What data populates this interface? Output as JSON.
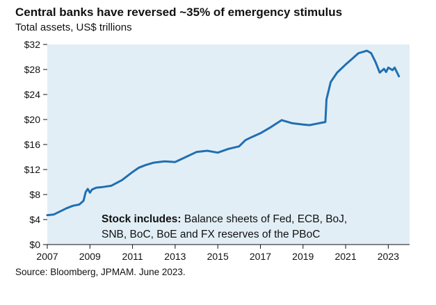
{
  "title": "Central banks have reversed ~35% of emergency stimulus",
  "subtitle": "Total assets, US$ trillions",
  "source": "Source: Bloomberg, JPMAM. June 2023.",
  "colors": {
    "plot_background": "#e2eef6",
    "line": "#1f6fb2",
    "axis": "#111111",
    "gridline": "#c7d8e4"
  },
  "chart_data": {
    "type": "line",
    "title": "Central banks have reversed ~35% of emergency stimulus",
    "subtitle": "Total assets, US$ trillions",
    "xlabel": "",
    "ylabel": "",
    "xlim": [
      2007,
      2024
    ],
    "ylim": [
      0,
      32
    ],
    "grid": false,
    "x_ticks": [
      2007,
      2009,
      2011,
      2013,
      2015,
      2017,
      2019,
      2021,
      2023
    ],
    "x_tick_labels": [
      "2007",
      "2009",
      "2011",
      "2013",
      "2015",
      "2017",
      "2019",
      "2021",
      "2023"
    ],
    "y_ticks": [
      0,
      4,
      8,
      12,
      16,
      20,
      24,
      28,
      32
    ],
    "y_tick_labels": [
      "$0",
      "$4",
      "$8",
      "$12",
      "$16",
      "$20",
      "$24",
      "$28",
      "$32"
    ],
    "annotation": {
      "bold": "Stock includes:",
      "line1": " Balance sheets of Fed, ECB, BoJ,",
      "line2": "SNB, BoC, BoE and FX reserves of the PBoC"
    },
    "series": [
      {
        "x": [
          2007.0,
          2007.3,
          2007.6,
          2007.9,
          2008.2,
          2008.5,
          2008.7,
          2008.8,
          2008.9,
          2009.0,
          2009.1,
          2009.3,
          2009.6,
          2010.0,
          2010.5,
          2011.0,
          2011.3,
          2011.6,
          2012.0,
          2012.5,
          2013.0,
          2013.5,
          2014.0,
          2014.5,
          2015.0,
          2015.5,
          2016.0,
          2016.3,
          2016.6,
          2017.0,
          2017.5,
          2018.0,
          2018.5,
          2019.0,
          2019.3,
          2019.6,
          2019.9,
          2020.05,
          2020.1,
          2020.3,
          2020.6,
          2021.0,
          2021.3,
          2021.6,
          2021.9,
          2022.0,
          2022.2,
          2022.4,
          2022.6,
          2022.8,
          2022.9,
          2023.0,
          2023.2,
          2023.3,
          2023.5
        ],
        "values": [
          4.7,
          4.8,
          5.3,
          5.8,
          6.2,
          6.4,
          7.0,
          8.4,
          8.9,
          8.3,
          8.8,
          9.1,
          9.2,
          9.4,
          10.3,
          11.6,
          12.3,
          12.7,
          13.1,
          13.3,
          13.2,
          14.0,
          14.8,
          15.0,
          14.7,
          15.3,
          15.7,
          16.7,
          17.2,
          17.8,
          18.8,
          19.9,
          19.4,
          19.2,
          19.1,
          19.3,
          19.5,
          19.6,
          23.2,
          26.0,
          27.5,
          28.8,
          29.7,
          30.6,
          30.9,
          31.0,
          30.6,
          29.2,
          27.5,
          28.1,
          27.6,
          28.3,
          27.9,
          28.3,
          26.9
        ]
      }
    ]
  }
}
